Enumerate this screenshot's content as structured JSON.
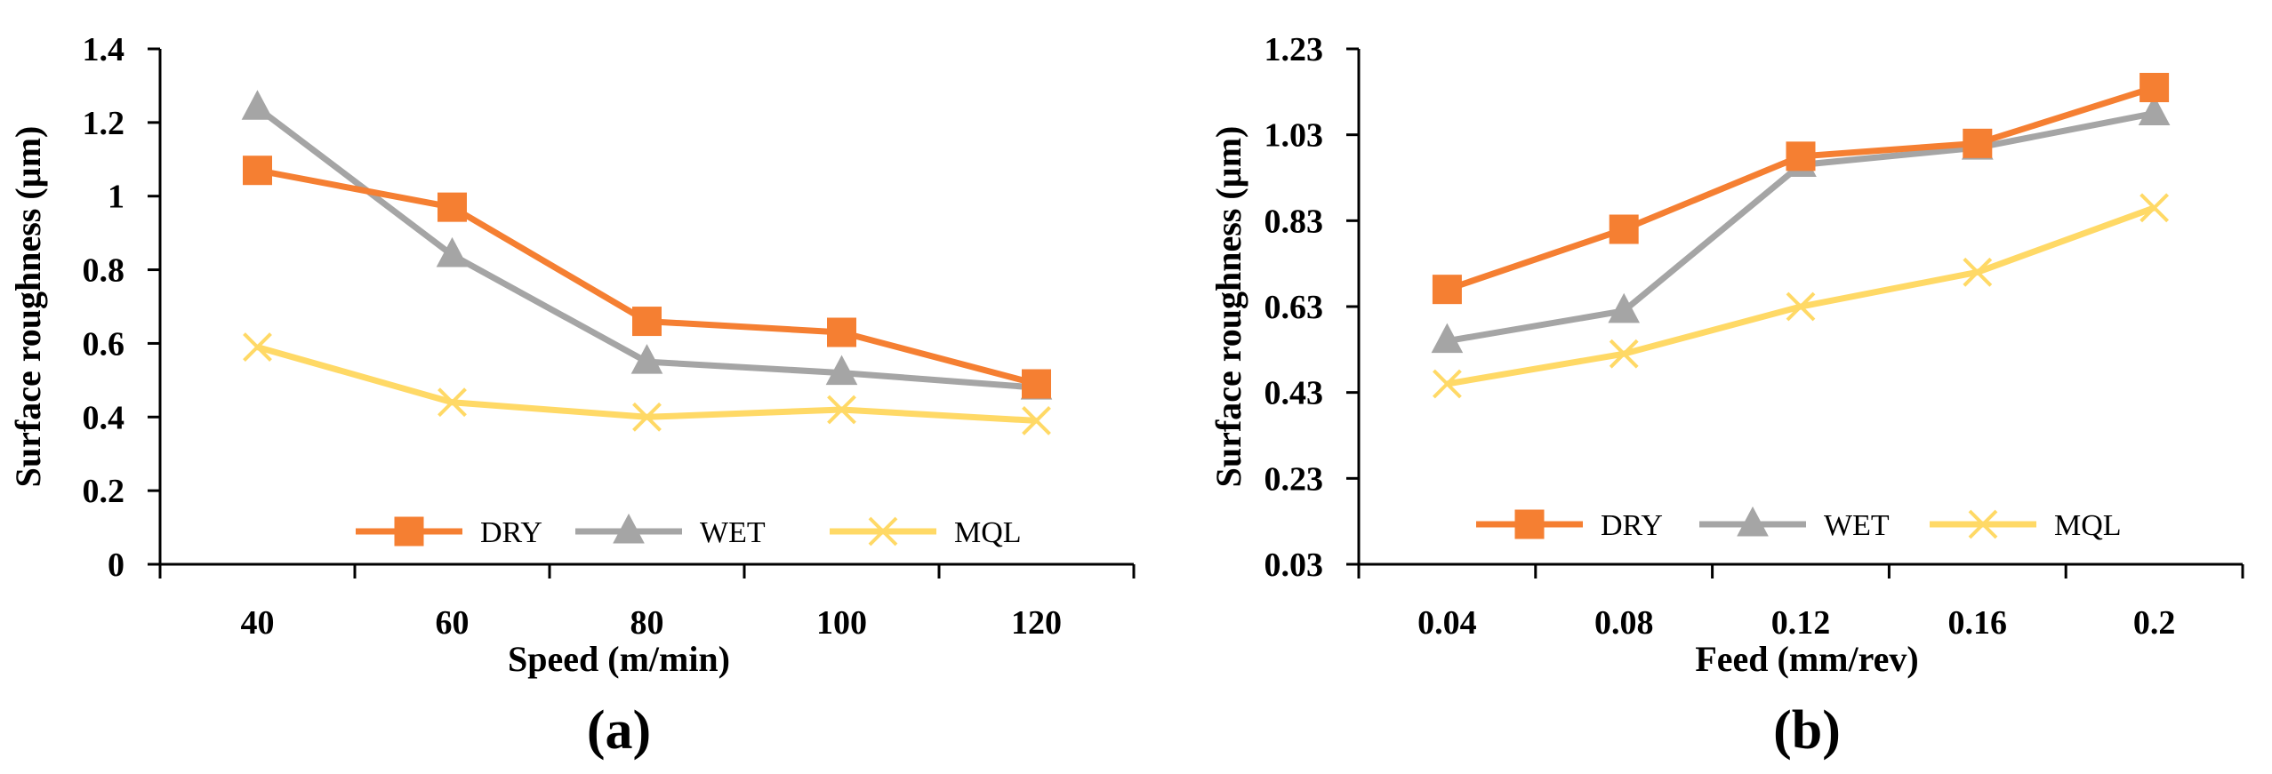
{
  "chart_data": [
    {
      "type": "line",
      "panel_label": "(a)",
      "x": [
        40,
        60,
        80,
        100,
        120
      ],
      "xticklabels": [
        "40",
        "60",
        "80",
        "100",
        "120"
      ],
      "xlabel": "Speed (m/min)",
      "ylabel": "Surface roughness (µm)",
      "ylim": [
        0,
        1.4
      ],
      "yticks": [
        0,
        0.2,
        0.4,
        0.6,
        0.8,
        1,
        1.2,
        1.4
      ],
      "yticklabels": [
        "0",
        "0.2",
        "0.4",
        "0.6",
        "0.8",
        "1",
        "1.2",
        "1.4"
      ],
      "grid": false,
      "legend_position": "bottom-right",
      "series": [
        {
          "name": "DRY",
          "values": [
            1.07,
            0.97,
            0.66,
            0.63,
            0.49
          ],
          "color": "#F57F32",
          "marker": "square"
        },
        {
          "name": "WET",
          "values": [
            1.24,
            0.84,
            0.55,
            0.52,
            0.48
          ],
          "color": "#A5A5A5",
          "marker": "triangle"
        },
        {
          "name": "MQL",
          "values": [
            0.59,
            0.44,
            0.4,
            0.42,
            0.39
          ],
          "color": "#FFD966",
          "marker": "x"
        }
      ]
    },
    {
      "type": "line",
      "panel_label": "(b)",
      "x": [
        0.04,
        0.08,
        0.12,
        0.16,
        0.2
      ],
      "xticklabels": [
        "0.04",
        "0.08",
        "0.12",
        "0.16",
        "0.2"
      ],
      "xlabel": "Feed (mm/rev)",
      "ylabel": "Surface roughness (µm)",
      "ylim": [
        0.03,
        1.23
      ],
      "yticks": [
        0.03,
        0.23,
        0.43,
        0.63,
        0.83,
        1.03,
        1.23
      ],
      "yticklabels": [
        "0.03",
        "0.23",
        "0.43",
        "0.63",
        "0.83",
        "1.03",
        "1.23"
      ],
      "grid": false,
      "legend_position": "bottom-right",
      "series": [
        {
          "name": "DRY",
          "values": [
            0.67,
            0.81,
            0.98,
            1.01,
            1.14
          ],
          "color": "#F57F32",
          "marker": "square"
        },
        {
          "name": "WET",
          "values": [
            0.55,
            0.62,
            0.96,
            1.0,
            1.08
          ],
          "color": "#A5A5A5",
          "marker": "triangle"
        },
        {
          "name": "MQL",
          "values": [
            0.45,
            0.52,
            0.63,
            0.71,
            0.86
          ],
          "color": "#FFD966",
          "marker": "x"
        }
      ]
    }
  ]
}
